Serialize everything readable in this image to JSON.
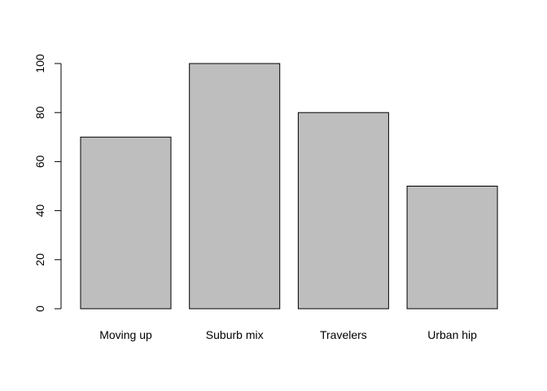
{
  "chart_data": {
    "type": "bar",
    "categories": [
      "Moving up",
      "Suburb mix",
      "Travelers",
      "Urban hip"
    ],
    "values": [
      70,
      100,
      80,
      50
    ],
    "title": "",
    "xlabel": "",
    "ylabel": "",
    "ylim": [
      0,
      100
    ],
    "yticks": [
      0,
      20,
      40,
      60,
      80,
      100
    ],
    "grid": false,
    "colors": {
      "bar_fill": "#bebebe",
      "bar_stroke": "#000000"
    }
  }
}
